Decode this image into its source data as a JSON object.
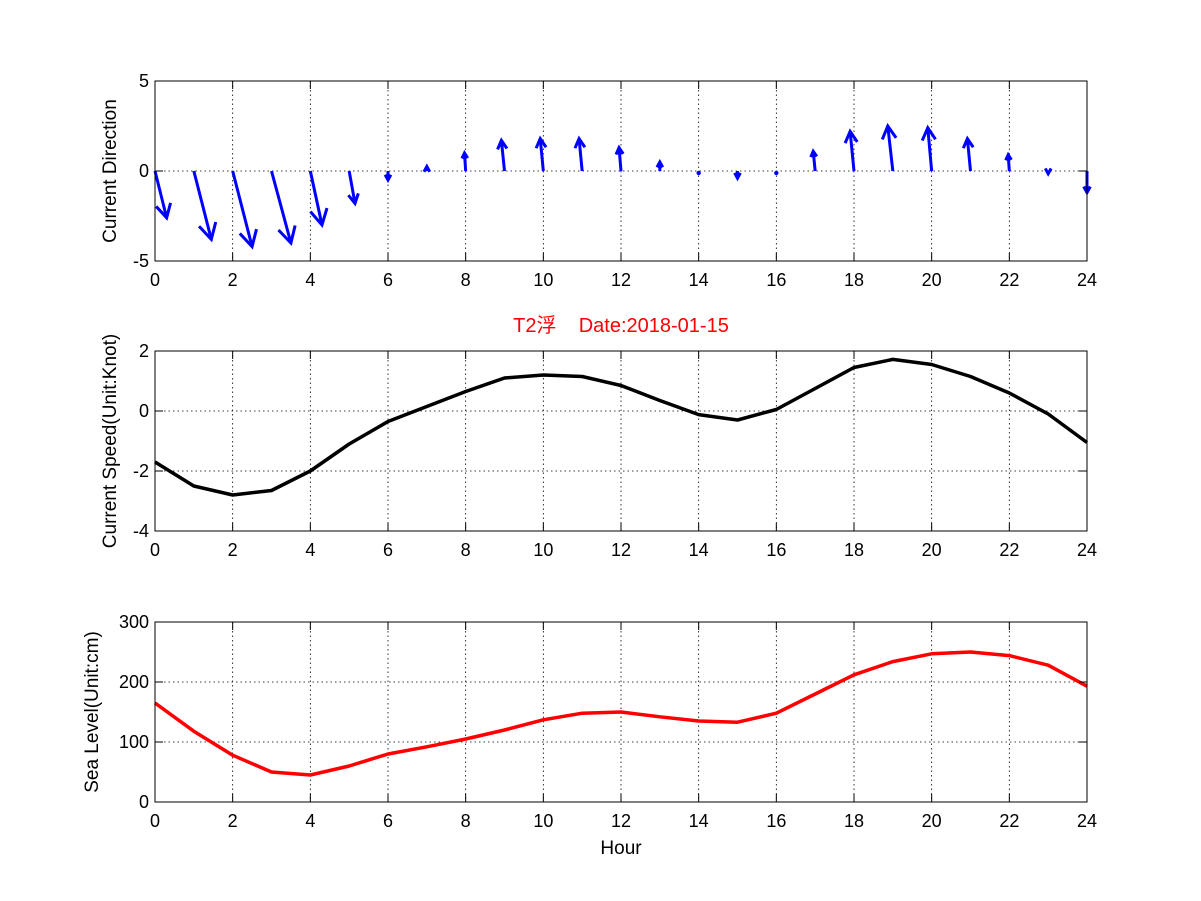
{
  "chart_data": [
    {
      "type": "quiver",
      "ylabel": "Current Direction",
      "xlim": [
        0,
        24
      ],
      "ylim": [
        -5,
        5
      ],
      "xticks": [
        0,
        2,
        4,
        6,
        8,
        10,
        12,
        14,
        16,
        18,
        20,
        22,
        24
      ],
      "yticks": [
        -5,
        0,
        5
      ],
      "grid": true,
      "color": "#0000ff",
      "vectors": [
        {
          "x": 0,
          "u": 0.3,
          "v": -2.6
        },
        {
          "x": 1,
          "u": 0.45,
          "v": -3.8
        },
        {
          "x": 2,
          "u": 0.5,
          "v": -4.2
        },
        {
          "x": 3,
          "u": 0.5,
          "v": -4.0
        },
        {
          "x": 4,
          "u": 0.3,
          "v": -3.0
        },
        {
          "x": 5,
          "u": 0.15,
          "v": -1.8
        },
        {
          "x": 6,
          "u": 0.0,
          "v": -0.5
        },
        {
          "x": 7,
          "u": 0.0,
          "v": 0.25
        },
        {
          "x": 8,
          "u": -0.03,
          "v": 1.0
        },
        {
          "x": 9,
          "u": -0.08,
          "v": 1.7
        },
        {
          "x": 10,
          "u": -0.08,
          "v": 1.8
        },
        {
          "x": 11,
          "u": -0.08,
          "v": 1.8
        },
        {
          "x": 12,
          "u": -0.05,
          "v": 1.3
        },
        {
          "x": 13,
          "u": 0.0,
          "v": 0.5
        },
        {
          "x": 14,
          "u": 0.0,
          "v": -0.1
        },
        {
          "x": 15,
          "u": 0.0,
          "v": -0.4
        },
        {
          "x": 16,
          "u": 0.0,
          "v": -0.05
        },
        {
          "x": 17,
          "u": -0.05,
          "v": 1.1
        },
        {
          "x": 18,
          "u": -0.1,
          "v": 2.2
        },
        {
          "x": 19,
          "u": -0.13,
          "v": 2.5
        },
        {
          "x": 20,
          "u": -0.1,
          "v": 2.4
        },
        {
          "x": 21,
          "u": -0.08,
          "v": 1.8
        },
        {
          "x": 22,
          "u": -0.03,
          "v": 0.9
        },
        {
          "x": 23,
          "u": 0.0,
          "v": -0.15
        },
        {
          "x": 24,
          "u": 0.0,
          "v": -1.2
        }
      ]
    },
    {
      "type": "line",
      "title": "T2浮    Date:2018-01-15",
      "ylabel": "Current Speed(Unit:Knot)",
      "xlim": [
        0,
        24
      ],
      "ylim": [
        -4,
        2
      ],
      "xticks": [
        0,
        2,
        4,
        6,
        8,
        10,
        12,
        14,
        16,
        18,
        20,
        22,
        24
      ],
      "yticks": [
        -4,
        -2,
        0,
        2
      ],
      "grid": true,
      "color": "#000000",
      "x": [
        0,
        1,
        2,
        3,
        4,
        5,
        6,
        7,
        8,
        9,
        10,
        11,
        12,
        13,
        14,
        15,
        16,
        17,
        18,
        19,
        20,
        21,
        22,
        23,
        24
      ],
      "y": [
        -1.7,
        -2.5,
        -2.8,
        -2.65,
        -2.0,
        -1.1,
        -0.35,
        0.15,
        0.65,
        1.1,
        1.2,
        1.15,
        0.85,
        0.35,
        -0.12,
        -0.3,
        0.05,
        0.75,
        1.45,
        1.72,
        1.55,
        1.15,
        0.6,
        -0.1,
        -1.05
      ]
    },
    {
      "type": "line",
      "ylabel": "Sea Level(Unit:cm)",
      "xlabel": "Hour",
      "xlim": [
        0,
        24
      ],
      "ylim": [
        0,
        300
      ],
      "xticks": [
        0,
        2,
        4,
        6,
        8,
        10,
        12,
        14,
        16,
        18,
        20,
        22,
        24
      ],
      "yticks": [
        0,
        100,
        200,
        300
      ],
      "grid": true,
      "color": "#ff0000",
      "x": [
        0,
        1,
        2,
        3,
        4,
        5,
        6,
        7,
        8,
        9,
        10,
        11,
        12,
        13,
        14,
        15,
        16,
        17,
        18,
        19,
        20,
        21,
        22,
        23,
        24
      ],
      "y": [
        165,
        118,
        78,
        50,
        45,
        60,
        80,
        92,
        105,
        120,
        137,
        148,
        150,
        142,
        135,
        133,
        148,
        180,
        212,
        234,
        247,
        250,
        244,
        228,
        193
      ]
    }
  ]
}
